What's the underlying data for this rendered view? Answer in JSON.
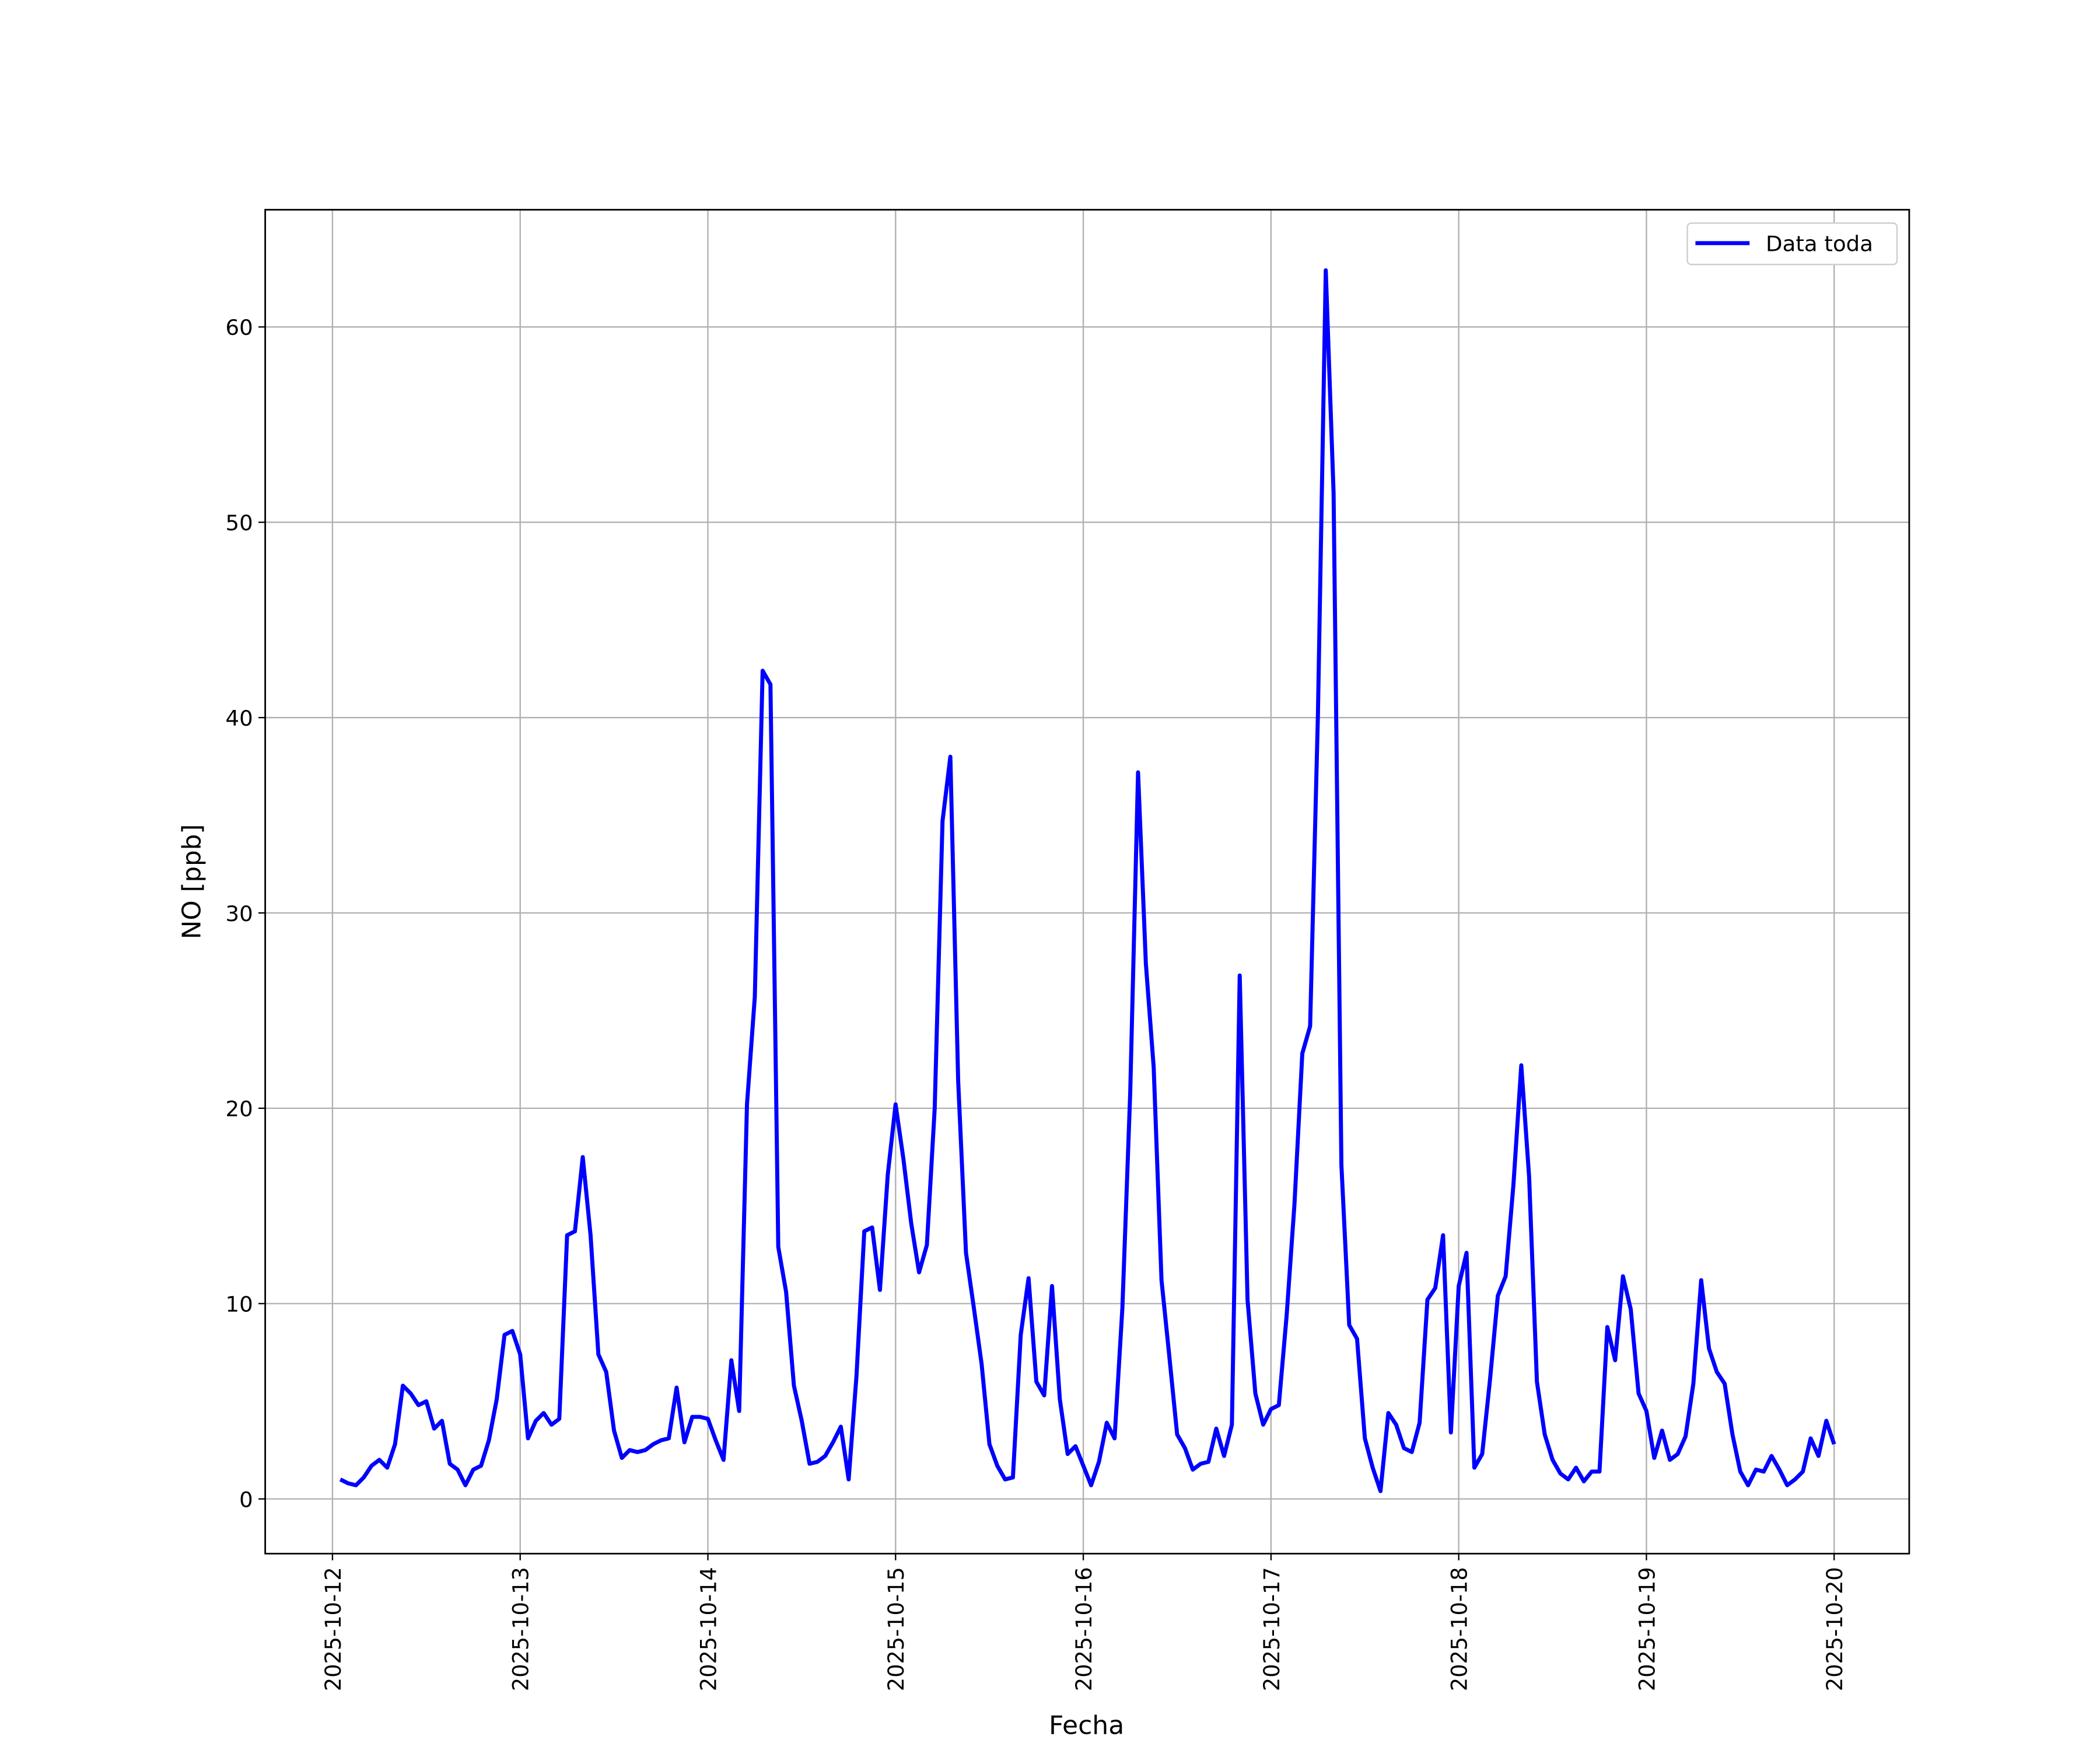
{
  "chart_data": {
    "type": "line",
    "xlabel": "Fecha",
    "ylabel": "NO [ppb]",
    "x": [
      1,
      2,
      3,
      4,
      5,
      6,
      7,
      8,
      9,
      10,
      11,
      12,
      13,
      14,
      15,
      16,
      17,
      18,
      19,
      20,
      21,
      22,
      23,
      24,
      25,
      26,
      27,
      28,
      29,
      30,
      31,
      32,
      33,
      34,
      35,
      36,
      37,
      38,
      39,
      40,
      41,
      42,
      43,
      44,
      45,
      46,
      47,
      48,
      49,
      50,
      51,
      52,
      53,
      54,
      55,
      56,
      57,
      58,
      59,
      60,
      61,
      62,
      63,
      64,
      65,
      66,
      67,
      68,
      69,
      70,
      71,
      72,
      73,
      74,
      75,
      76,
      77,
      78,
      79,
      80,
      81,
      82,
      83,
      84,
      85,
      86,
      87,
      88,
      89,
      90,
      91,
      92,
      93,
      94,
      95,
      96,
      97,
      98,
      99,
      100,
      101,
      102,
      103,
      104,
      105,
      106,
      107,
      108,
      109,
      110,
      111,
      112,
      113,
      114,
      115,
      116,
      117,
      118,
      119,
      120,
      121,
      122,
      123,
      124,
      125,
      126,
      127,
      128,
      129,
      130,
      131,
      132,
      133,
      134,
      135,
      136,
      137,
      138,
      139,
      140,
      141,
      142,
      143,
      144,
      145,
      146,
      147,
      148,
      149,
      150,
      151,
      152,
      153,
      154,
      155,
      156,
      157,
      158,
      159,
      160,
      161,
      162,
      163,
      164,
      165,
      166,
      167,
      168,
      169,
      170,
      171,
      172,
      173,
      174,
      175,
      176,
      177,
      178,
      179,
      180,
      181,
      182,
      183,
      184,
      185,
      186,
      187,
      188,
      189,
      190,
      191,
      192
    ],
    "series": [
      {
        "name": "Data toda",
        "color": "#0000ff",
        "values": [
          1.0,
          0.8,
          0.7,
          1.1,
          1.7,
          2.0,
          1.6,
          2.8,
          5.8,
          5.4,
          4.8,
          5.0,
          3.6,
          4.0,
          1.8,
          1.5,
          0.7,
          1.5,
          1.7,
          3.0,
          5.1,
          8.4,
          8.6,
          7.4,
          3.1,
          4.0,
          4.4,
          3.8,
          4.1,
          13.5,
          13.7,
          17.5,
          13.5,
          7.4,
          6.5,
          3.5,
          2.1,
          2.5,
          2.4,
          2.5,
          2.8,
          3.0,
          3.1,
          5.7,
          2.9,
          4.2,
          4.2,
          4.1,
          3.0,
          2.0,
          7.1,
          4.5,
          20.2,
          25.7,
          42.4,
          41.7,
          12.9,
          10.6,
          5.8,
          4.0,
          1.8,
          1.9,
          2.2,
          2.9,
          3.7,
          1.0,
          6.3,
          13.7,
          13.9,
          10.7,
          16.6,
          20.2,
          17.4,
          14.1,
          11.6,
          13.0,
          20.0,
          34.7,
          38.0,
          21.4,
          12.6,
          9.8,
          6.9,
          2.8,
          1.7,
          1.0,
          1.1,
          8.4,
          11.3,
          6.0,
          5.3,
          10.9,
          5.1,
          2.3,
          2.7,
          1.7,
          0.7,
          1.9,
          3.9,
          3.1,
          9.8,
          20.8,
          37.2,
          27.4,
          22.1,
          11.2,
          7.3,
          3.3,
          2.6,
          1.5,
          1.8,
          1.9,
          3.6,
          2.2,
          3.8,
          26.8,
          10.2,
          5.4,
          3.8,
          4.6,
          4.8,
          9.4,
          15.1,
          22.8,
          24.2,
          40.2,
          62.9,
          51.5,
          17.1,
          8.9,
          8.2,
          3.1,
          1.6,
          0.4,
          4.4,
          3.8,
          2.6,
          2.4,
          3.9,
          10.2,
          10.8,
          13.5,
          3.4,
          10.9,
          12.6,
          1.6,
          2.3,
          6.1,
          10.4,
          11.4,
          16.1,
          22.2,
          16.5,
          6.0,
          3.3,
          2.0,
          1.3,
          1.0,
          1.6,
          0.9,
          1.4,
          1.4,
          8.8,
          7.1,
          11.4,
          9.7,
          5.4,
          4.5,
          2.1,
          3.5,
          2.0,
          2.3,
          3.2,
          5.9,
          11.2,
          7.7,
          6.5,
          5.9,
          3.3,
          1.4,
          0.7,
          1.5,
          1.4,
          2.2,
          1.5,
          0.7,
          1.0,
          1.4,
          3.1,
          2.2,
          4.0,
          2.8
        ]
      }
    ],
    "xlim": [
      -8.6,
      201.6
    ],
    "xticks": [
      {
        "value": 0,
        "label": "2025-10-12"
      },
      {
        "value": 24,
        "label": "2025-10-13"
      },
      {
        "value": 48,
        "label": "2025-10-14"
      },
      {
        "value": 72,
        "label": "2025-10-15"
      },
      {
        "value": 96,
        "label": "2025-10-16"
      },
      {
        "value": 120,
        "label": "2025-10-17"
      },
      {
        "value": 144,
        "label": "2025-10-18"
      },
      {
        "value": 168,
        "label": "2025-10-19"
      },
      {
        "value": 192,
        "label": "2025-10-20"
      }
    ],
    "ylim": [
      -2.8,
      66
    ],
    "yticks": [
      0,
      10,
      20,
      30,
      40,
      50,
      60
    ],
    "grid": true,
    "legend": "upper right"
  }
}
